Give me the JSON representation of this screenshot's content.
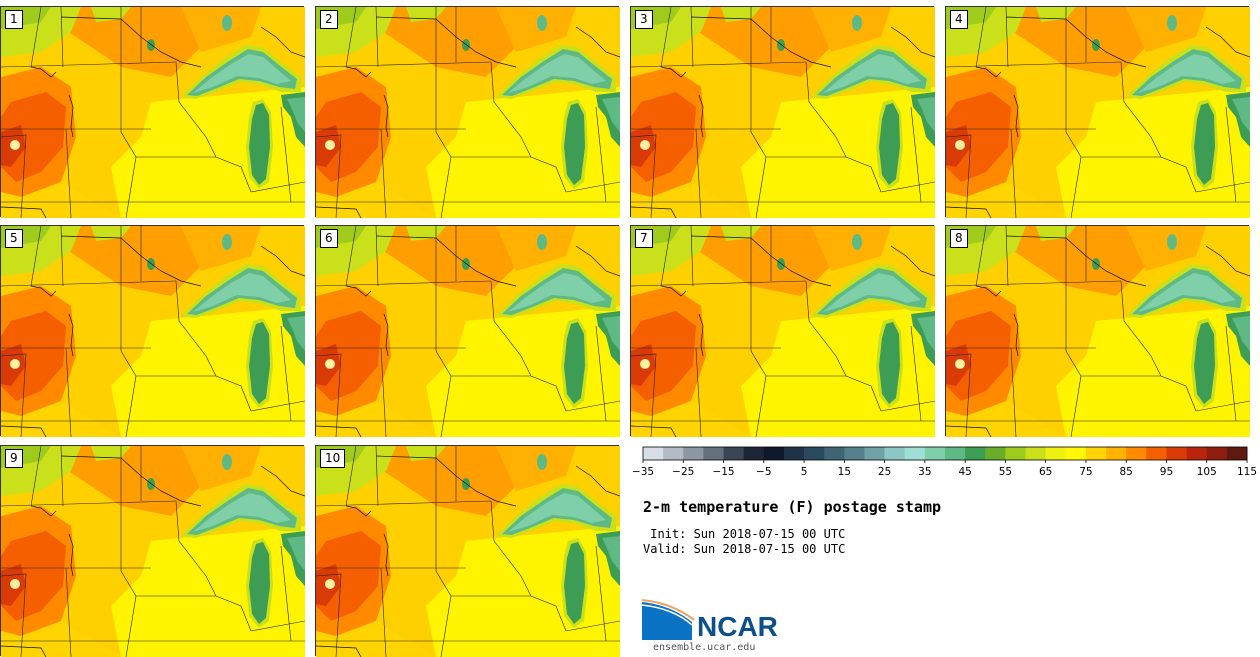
{
  "panels": [
    {
      "label": "1"
    },
    {
      "label": "2"
    },
    {
      "label": "3"
    },
    {
      "label": "4"
    },
    {
      "label": "5"
    },
    {
      "label": "6"
    },
    {
      "label": "7"
    },
    {
      "label": "8"
    },
    {
      "label": "9"
    },
    {
      "label": "10"
    }
  ],
  "colorbar": {
    "tick_labels": [
      "−35",
      "−25",
      "−15",
      "−5",
      "5",
      "15",
      "25",
      "35",
      "45",
      "55",
      "65",
      "75",
      "85",
      "95",
      "105",
      "115"
    ],
    "colors": [
      "#d7dee5",
      "#b3bcc6",
      "#8d97a3",
      "#65707d",
      "#3b4655",
      "#1c2636",
      "#0e1a2b",
      "#1e3346",
      "#2c4a5e",
      "#3f6474",
      "#56818c",
      "#6fa3a8",
      "#8cc7c3",
      "#9fdfd5",
      "#7fcfa9",
      "#5fb985",
      "#3e9d55",
      "#6aad2c",
      "#9fcb1d",
      "#c9e01a",
      "#eef00f",
      "#fff800",
      "#ffd400",
      "#ffb300",
      "#ff8a00",
      "#f55f00",
      "#d93a06",
      "#b8240c",
      "#8e1e10",
      "#5e1a10"
    ]
  },
  "title": "2-m temperature (F) postage stamp",
  "init": " Init: Sun 2018-07-15 00 UTC",
  "valid": "Valid: Sun 2018-07-15 00 UTC",
  "logo": {
    "text": "NCAR",
    "url": "ensemble.ucar.edu"
  }
}
